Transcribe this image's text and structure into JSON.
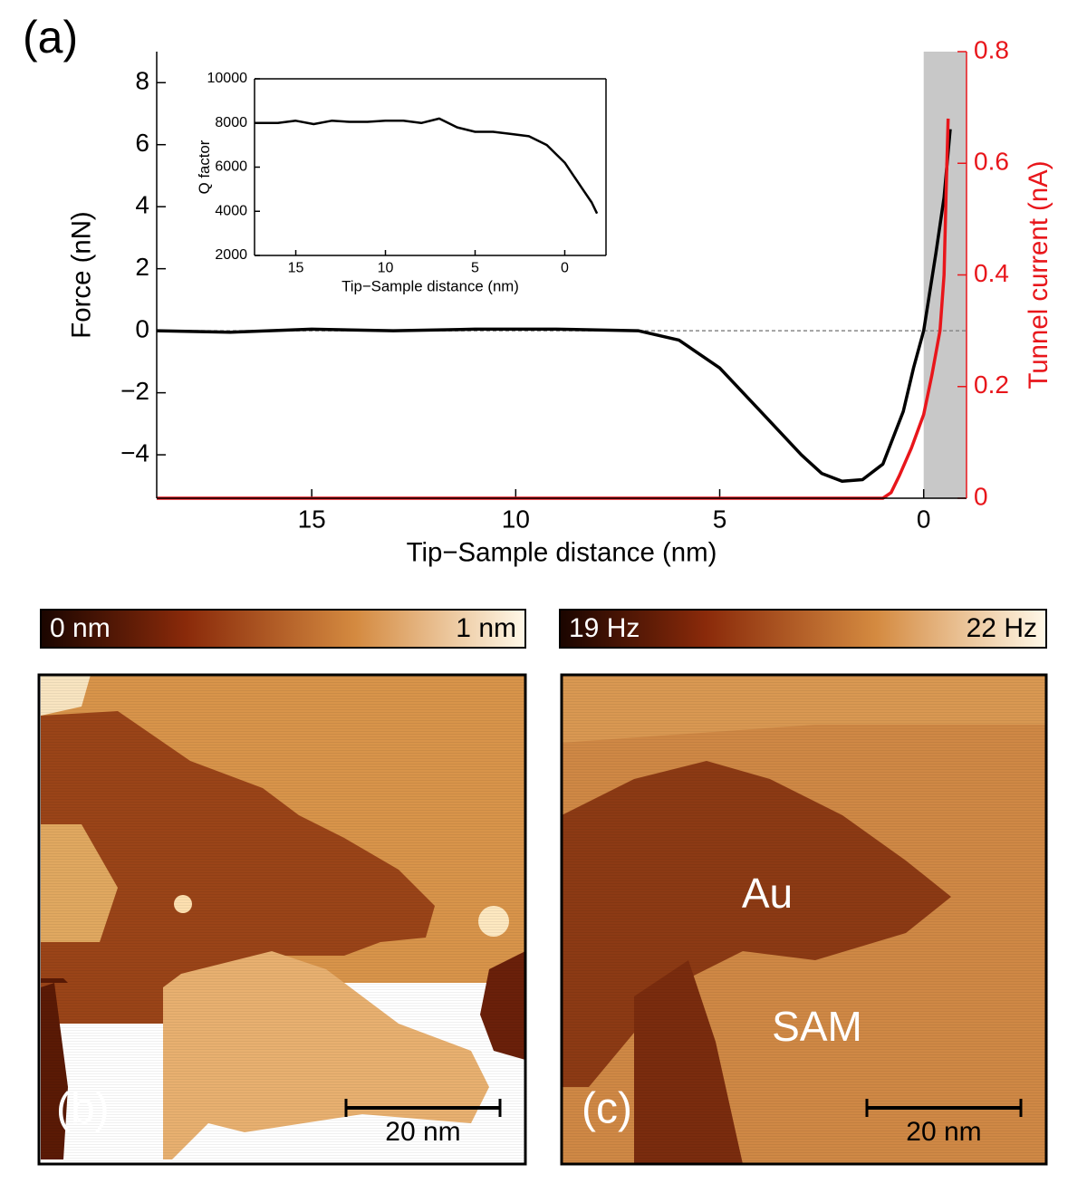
{
  "chart_data": [
    {
      "type": "line",
      "panel_label": "(a)",
      "x_label": "Tip−Sample distance (nm)",
      "y_label": "Force (nN)",
      "y2_label": "Tunnel current (nA)",
      "xlim": [
        18.8,
        -1.05
      ],
      "xticks": [
        15,
        10,
        5,
        0
      ],
      "ylim": [
        -5.4,
        9
      ],
      "yticks": [
        {
          "value": -4,
          "label": "−4"
        },
        {
          "value": -2,
          "label": "−2"
        },
        0,
        2,
        4,
        6,
        8
      ],
      "y2lim": [
        0,
        0.8
      ],
      "y2ticks": [
        0,
        0.2,
        0.4,
        0.6,
        0.8
      ],
      "y2color": "#e8161b",
      "shaded_region": [
        0,
        -1.05
      ],
      "zero_line": true,
      "series": [
        {
          "color": "#000000",
          "x": [
            18.8,
            17,
            15,
            13,
            11,
            9,
            7,
            6,
            5,
            4,
            3,
            2.5,
            2,
            1.5,
            1,
            0.5,
            0.25,
            0,
            -0.3,
            -0.5,
            -0.65
          ],
          "values": [
            0,
            -0.05,
            0.05,
            0,
            0.05,
            0.05,
            0,
            -0.3,
            -1.2,
            -2.6,
            -4.0,
            -4.6,
            -4.85,
            -4.8,
            -4.3,
            -2.6,
            -1.2,
            0,
            2.5,
            4.3,
            6.5
          ]
        },
        {
          "color": "#e8161b",
          "axis": "y2",
          "x": [
            18.8,
            15,
            10,
            5,
            2,
            1,
            0.8,
            0.6,
            0.3,
            0,
            -0.2,
            -0.4,
            -0.5,
            -0.55,
            -0.6
          ],
          "values": [
            0,
            0,
            0,
            0,
            0,
            0,
            0.01,
            0.04,
            0.09,
            0.15,
            0.22,
            0.3,
            0.4,
            0.55,
            0.68
          ]
        }
      ]
    },
    {
      "type": "line",
      "x_label": "Tip−Sample distance (nm)",
      "y_label": "Q factor",
      "xlim": [
        17.3,
        -2.3
      ],
      "xticks": [
        15,
        10,
        5,
        0
      ],
      "ylim": [
        2000,
        10000
      ],
      "yticks": [
        2000,
        4000,
        6000,
        8000,
        10000
      ],
      "series": [
        {
          "color": "#000000",
          "x": [
            17.3,
            16,
            15,
            14,
            13,
            12,
            11,
            10,
            9,
            8,
            7,
            6,
            5,
            4,
            3,
            2,
            1,
            0,
            -0.5,
            -1,
            -1.5,
            -1.8
          ],
          "values": [
            8000,
            8000,
            8100,
            7950,
            8100,
            8050,
            8050,
            8100,
            8100,
            8000,
            8200,
            7800,
            7600,
            7600,
            7500,
            7400,
            7000,
            6200,
            5600,
            5000,
            4400,
            3900
          ]
        }
      ]
    }
  ],
  "images": [
    {
      "panel_label": "(b)",
      "colorbar_min": "0 nm",
      "colorbar_max": "1 nm",
      "scale_bar": "20 nm"
    },
    {
      "panel_label": "(c)",
      "colorbar_min": "19 Hz",
      "colorbar_max": "22 Hz",
      "scale_bar": "20 nm",
      "labels": [
        "Au",
        "SAM"
      ]
    }
  ]
}
